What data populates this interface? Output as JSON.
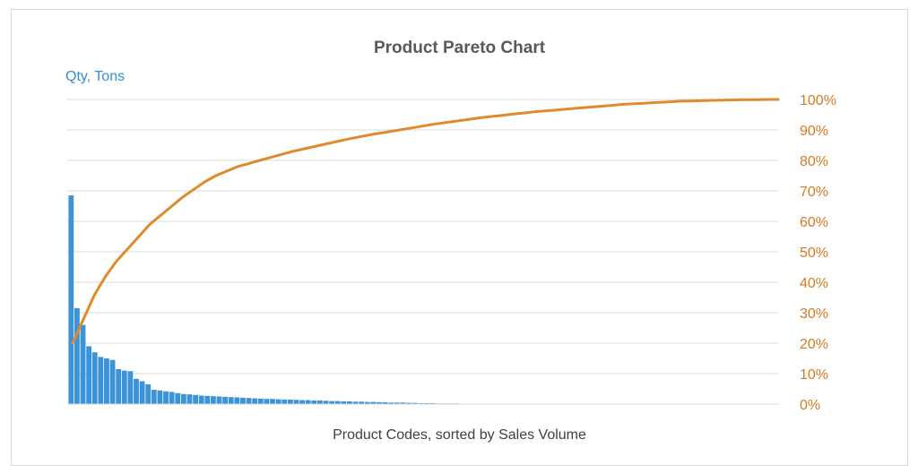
{
  "chart_data": {
    "type": "bar",
    "title": "Product Pareto Chart",
    "ylabel": "Qty, Tons",
    "xlabel": "Product Codes, sorted by Sales Volume",
    "x_tick_labels": "none",
    "y_left": {
      "visible_ticks": false,
      "max_ref": 100
    },
    "y_right": {
      "range": [
        0,
        100
      ],
      "ticks": [
        "0%",
        "10%",
        "20%",
        "30%",
        "40%",
        "50%",
        "60%",
        "70%",
        "80%",
        "90%",
        "100%"
      ]
    },
    "grid": true,
    "legend": "none",
    "colors": {
      "bars": "#3b94d9",
      "line": "#e08a2e",
      "right_axis_text": "#d77a21",
      "left_axis_label": "#2e8fd6",
      "grid": "#d9d9d9"
    },
    "series": [
      {
        "type": "bar",
        "axis": "left",
        "values": [
          68.5,
          31.5,
          26,
          19,
          17,
          15.5,
          15,
          14.5,
          11.5,
          11,
          10.8,
          8.3,
          7.5,
          6.5,
          4.7,
          4.5,
          4.2,
          4.0,
          3.6,
          3.3,
          3.2,
          3.0,
          2.8,
          2.7,
          2.6,
          2.5,
          2.4,
          2.3,
          2.2,
          2.1,
          2.0,
          1.9,
          1.8,
          1.7,
          1.7,
          1.6,
          1.5,
          1.5,
          1.4,
          1.3,
          1.3,
          1.2,
          1.2,
          1.1,
          1.0,
          1.0,
          0.9,
          0.9,
          0.8,
          0.8,
          0.7,
          0.7,
          0.6,
          0.6,
          0.5,
          0.5,
          0.5,
          0.4,
          0.4,
          0.3,
          0.3,
          0.3,
          0.2,
          0.2,
          0.2,
          0.2,
          0.1,
          0.1,
          0.1,
          0.1,
          0.1,
          0.1,
          0.1,
          0.1,
          0.1,
          0.1,
          0.1,
          0.1,
          0.1,
          0.1,
          0.1,
          0.1,
          0.1,
          0.1,
          0.1,
          0.1,
          0.1,
          0.1,
          0.1,
          0.1,
          0.1,
          0.1,
          0.1,
          0.1,
          0.1,
          0.1,
          0.1,
          0.1,
          0.1,
          0.1,
          0.1,
          0.1,
          0.1,
          0.1,
          0.1,
          0.1,
          0.1,
          0.1,
          0.1,
          0.1,
          0.1,
          0.1,
          0.1,
          0.1,
          0.1,
          0.1,
          0.1,
          0.1,
          0.1,
          0.1
        ]
      },
      {
        "type": "line",
        "axis": "right",
        "x_range": [
          0,
          64
        ],
        "points": [
          [
            0,
            20
          ],
          [
            1,
            28
          ],
          [
            2,
            36
          ],
          [
            3,
            42
          ],
          [
            4,
            47
          ],
          [
            5,
            51
          ],
          [
            6,
            55
          ],
          [
            7,
            59
          ],
          [
            8,
            62
          ],
          [
            9,
            65
          ],
          [
            10,
            68
          ],
          [
            11,
            70.5
          ],
          [
            12,
            73
          ],
          [
            13,
            75
          ],
          [
            14,
            76.5
          ],
          [
            15,
            78
          ],
          [
            16,
            79
          ],
          [
            17,
            80
          ],
          [
            18,
            81
          ],
          [
            19,
            82
          ],
          [
            20,
            83
          ],
          [
            21,
            83.8
          ],
          [
            22,
            84.6
          ],
          [
            23,
            85.4
          ],
          [
            24,
            86.2
          ],
          [
            25,
            87
          ],
          [
            26,
            87.7
          ],
          [
            27,
            88.4
          ],
          [
            28,
            89
          ],
          [
            29,
            89.6
          ],
          [
            30,
            90.2
          ],
          [
            31,
            90.8
          ],
          [
            32,
            91.4
          ],
          [
            33,
            92
          ],
          [
            34,
            92.5
          ],
          [
            35,
            93
          ],
          [
            36,
            93.5
          ],
          [
            37,
            94
          ],
          [
            38,
            94.4
          ],
          [
            39,
            94.8
          ],
          [
            40,
            95.2
          ],
          [
            41,
            95.6
          ],
          [
            42,
            96
          ],
          [
            43,
            96.3
          ],
          [
            44,
            96.6
          ],
          [
            45,
            96.9
          ],
          [
            46,
            97.2
          ],
          [
            47,
            97.5
          ],
          [
            48,
            97.8
          ],
          [
            49,
            98.1
          ],
          [
            50,
            98.4
          ],
          [
            51,
            98.6
          ],
          [
            52,
            98.8
          ],
          [
            53,
            99
          ],
          [
            54,
            99.2
          ],
          [
            55,
            99.4
          ],
          [
            56,
            99.5
          ],
          [
            57,
            99.6
          ],
          [
            58,
            99.7
          ],
          [
            59,
            99.8
          ],
          [
            60,
            99.85
          ],
          [
            61,
            99.9
          ],
          [
            62,
            99.95
          ],
          [
            63,
            100
          ],
          [
            64,
            100
          ]
        ]
      }
    ]
  }
}
